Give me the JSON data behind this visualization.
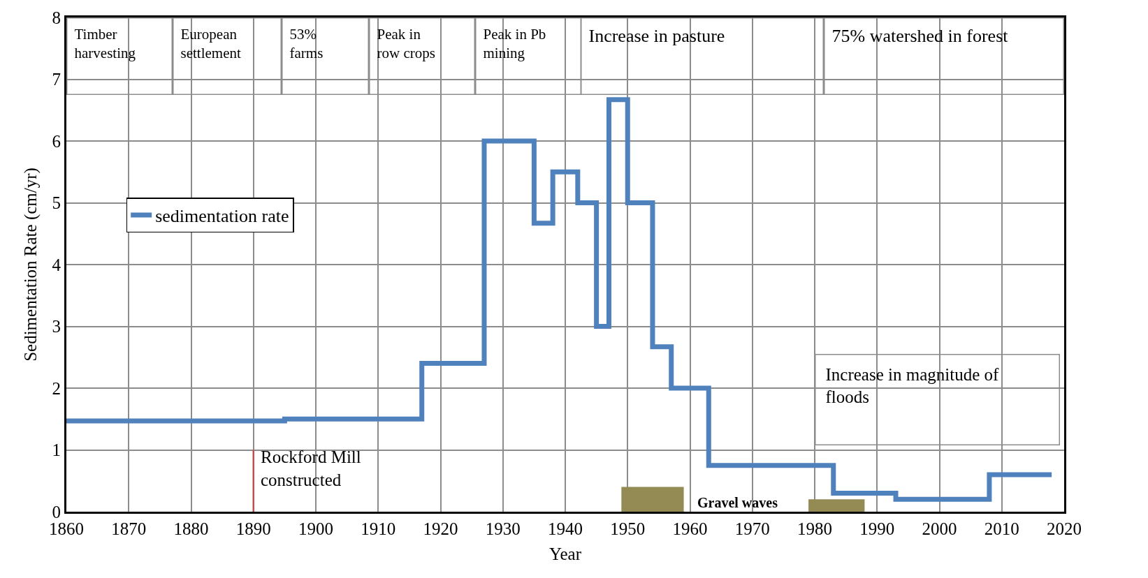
{
  "chart_data": {
    "type": "step",
    "xlabel": "Year",
    "ylabel": "Sedimentation Rate (cm/yr)",
    "xlim": [
      1860,
      2020
    ],
    "xticks": [
      1860,
      1870,
      1880,
      1890,
      1900,
      1910,
      1920,
      1930,
      1940,
      1950,
      1960,
      1970,
      1980,
      1990,
      2000,
      2010,
      2020
    ],
    "ylim": [
      0,
      8
    ],
    "yticks": [
      0,
      1,
      2,
      3,
      4,
      5,
      6,
      7,
      8
    ],
    "grid": true,
    "legend": "left",
    "series": [
      {
        "name": "sedimentation rate",
        "color": "#4f81bd",
        "x": [
          1860,
          1895,
          1917,
          1927,
          1935,
          1938,
          1942,
          1945,
          1947,
          1950,
          1954,
          1957,
          1963,
          1983,
          1993,
          2008,
          2018
        ],
        "values": [
          1.47,
          1.5,
          2.4,
          6.0,
          4.67,
          5.5,
          5.0,
          3.0,
          6.67,
          5.0,
          2.67,
          2.0,
          0.75,
          0.3,
          0.2,
          0.6,
          0.6
        ]
      },
      {
        "type": "area",
        "color": "#948a54",
        "x": [
          1949,
          1959
        ],
        "values": [
          0.4,
          0.4
        ]
      },
      {
        "type": "area",
        "color": "#948a54",
        "x": [
          1979,
          1988
        ],
        "values": [
          0.2,
          0.2
        ]
      },
      {
        "type": "line",
        "color": "#c0504d",
        "x": [
          1890,
          1890
        ],
        "values": [
          0,
          1
        ]
      }
    ],
    "annotations": [
      "Timber\nharvesting",
      "European\nsettlement",
      "53%\nfarms",
      "Peak in\nrow crops",
      "Peak in Pb\nmining",
      "Increase in pasture",
      "75% watershed in forest",
      "Increase in magnitude of\nfloods",
      {
        "text": "Rockford Mill\nconstructed",
        "x": 1890,
        "y": 1
      },
      "Gravel waves"
    ]
  }
}
